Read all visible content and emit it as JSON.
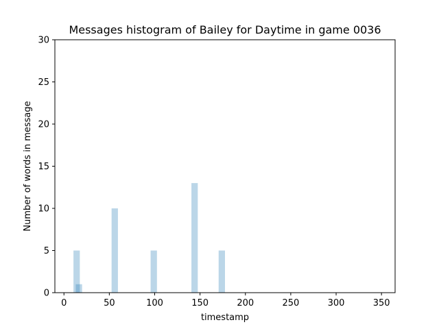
{
  "chart_data": {
    "type": "bar",
    "title": "Messages histogram of Bailey for Daytime in game 0036",
    "xlabel": "timestamp",
    "ylabel": "Number of words in message",
    "xlim": [
      -10,
      365
    ],
    "ylim": [
      0,
      30
    ],
    "x_ticks": [
      0,
      50,
      100,
      150,
      200,
      250,
      300,
      350
    ],
    "y_ticks": [
      0,
      5,
      10,
      15,
      20,
      25,
      30
    ],
    "bar_width": 7,
    "bar_color": "#1f77b4",
    "bar_opacity": 0.3,
    "bars": [
      {
        "x": 14,
        "value": 5
      },
      {
        "x": 16.5,
        "value": 1
      },
      {
        "x": 56,
        "value": 10
      },
      {
        "x": 99,
        "value": 5
      },
      {
        "x": 144,
        "value": 13
      },
      {
        "x": 174,
        "value": 5
      }
    ],
    "grid": false,
    "legend": "none"
  }
}
